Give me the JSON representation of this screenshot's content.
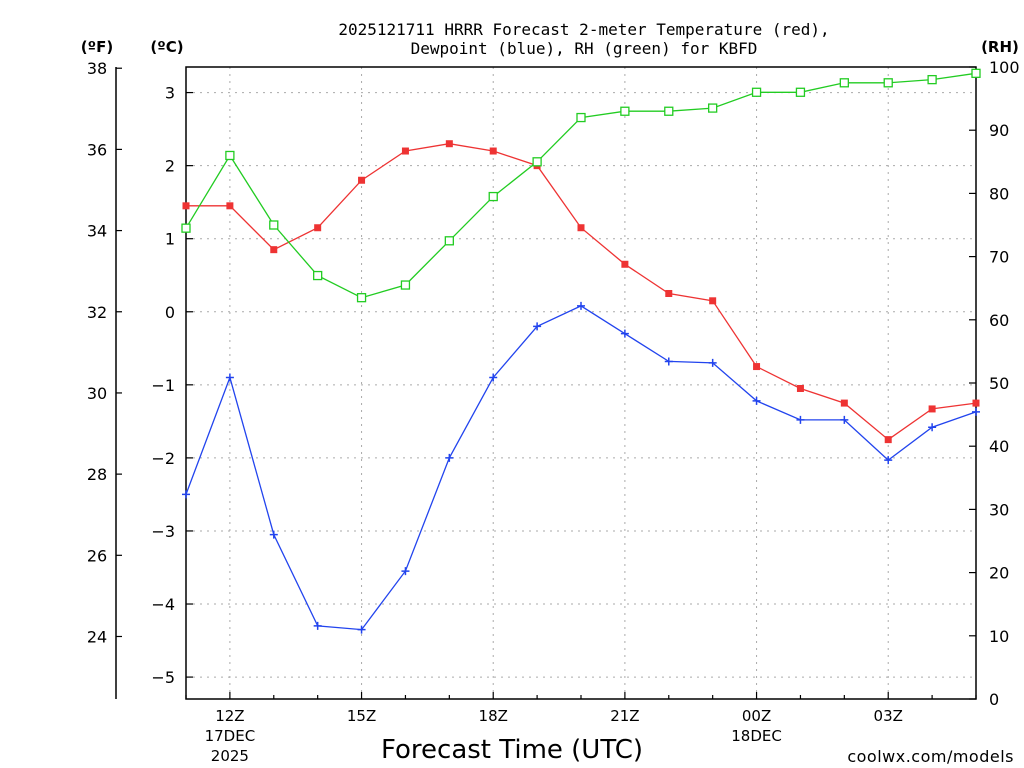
{
  "colors": {
    "temperature": "#ee3333",
    "dewpoint": "#2244ee",
    "rh": "#22cc22",
    "credit": "#e03030",
    "grid": "#aaaaaa"
  },
  "chart_data": {
    "type": "line",
    "title_line1": "2025121711 HRRR Forecast 2-meter Temperature (red),",
    "title_line2": "Dewpoint (blue), RH (green) for KBFD",
    "xlabel": "Forecast Time (UTC)",
    "credit": "coolwx.com/models",
    "units": {
      "fahrenheit": "(ºF)",
      "celsius": "(ºC)",
      "rh": "(RH)"
    },
    "x_hours": [
      11,
      12,
      13,
      14,
      15,
      16,
      17,
      18,
      19,
      20,
      21,
      22,
      23,
      24,
      25,
      26,
      27,
      28,
      29
    ],
    "x_ticks": [
      {
        "hour": 12,
        "label": "12Z",
        "sub1": "17DEC",
        "sub2": "2025"
      },
      {
        "hour": 15,
        "label": "15Z",
        "sub1": "",
        "sub2": ""
      },
      {
        "hour": 18,
        "label": "18Z",
        "sub1": "",
        "sub2": ""
      },
      {
        "hour": 21,
        "label": "21Z",
        "sub1": "",
        "sub2": ""
      },
      {
        "hour": 24,
        "label": "00Z",
        "sub1": "18DEC",
        "sub2": ""
      },
      {
        "hour": 27,
        "label": "03Z",
        "sub1": "",
        "sub2": ""
      }
    ],
    "xlim": [
      11,
      29
    ],
    "ylim_celsius": [
      -5.3,
      3.35
    ],
    "ylim_rh": [
      0,
      100
    ],
    "celsius_ticks": [
      3,
      2,
      1,
      0,
      -1,
      -2,
      -3,
      -4,
      -5
    ],
    "celsius_tick_labels": [
      "3",
      "2",
      "1",
      "0",
      "−1",
      "−2",
      "−3",
      "−4",
      "−5"
    ],
    "fahrenheit_ticks": [
      38,
      36,
      34,
      32,
      30,
      28,
      26,
      24
    ],
    "fahrenheit_tick_labels": [
      "38",
      "36",
      "34",
      "32",
      "30",
      "28",
      "26",
      "24"
    ],
    "rh_ticks": [
      100,
      90,
      80,
      70,
      60,
      50,
      40,
      30,
      20,
      10,
      0
    ],
    "rh_tick_labels": [
      "100",
      "90",
      "80",
      "70",
      "60",
      "50",
      "40",
      "30",
      "20",
      "10",
      "0"
    ],
    "series": [
      {
        "name": "Temperature",
        "axis": "celsius",
        "marker": "filled-square",
        "values": [
          1.45,
          1.45,
          0.85,
          1.15,
          1.8,
          2.2,
          2.3,
          2.2,
          2.0,
          1.15,
          0.65,
          0.25,
          0.15,
          -0.75,
          -1.05,
          -1.25,
          -1.75,
          -1.33,
          -1.25
        ]
      },
      {
        "name": "Dewpoint",
        "axis": "celsius",
        "marker": "plus",
        "values": [
          -2.5,
          -0.9,
          -3.05,
          -4.3,
          -4.35,
          -3.55,
          -2.0,
          -0.9,
          -0.2,
          0.08,
          -0.3,
          -0.68,
          -0.7,
          -1.22,
          -1.48,
          -1.48,
          -2.03,
          -1.58,
          -1.37
        ]
      },
      {
        "name": "RH",
        "axis": "rh",
        "marker": "open-square",
        "values": [
          74.5,
          86,
          75,
          67,
          63.5,
          65.5,
          72.5,
          79.5,
          85,
          92,
          93,
          93,
          93.5,
          96,
          96,
          97.5,
          97.5,
          98,
          99
        ]
      }
    ]
  }
}
